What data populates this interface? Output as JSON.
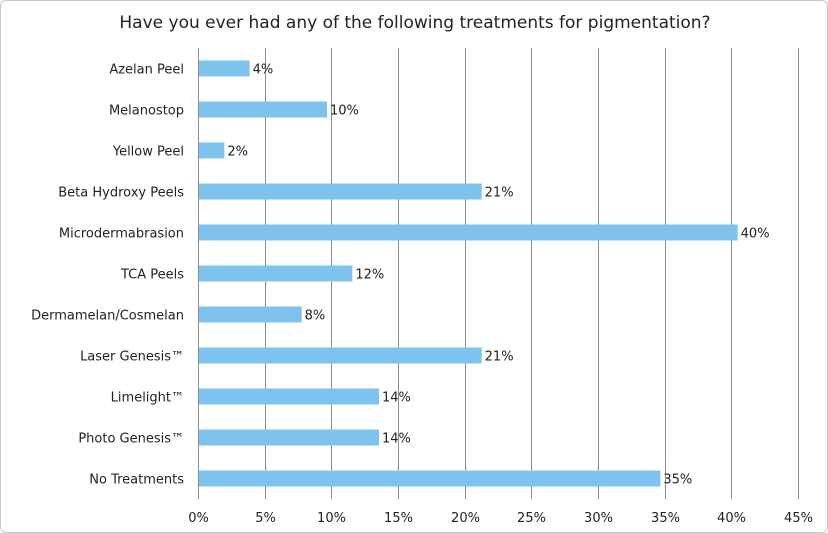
{
  "chart_data": {
    "type": "bar",
    "orientation": "horizontal",
    "title": "Have you ever had any of the following treatments for pigmentation?",
    "categories": [
      "Azelan Peel",
      "Melanostop",
      "Yellow Peel",
      "Beta Hydroxy Peels",
      "Microdermabrasion",
      "TCA Peels",
      "Dermamelan/Cosmelan",
      "Laser Genesis™",
      "Limelight™",
      "Photo Genesis™",
      "No Treatments"
    ],
    "values": [
      3.8,
      9.6,
      1.9,
      21.2,
      40.4,
      11.5,
      7.7,
      21.2,
      13.5,
      13.5,
      34.6
    ],
    "data_labels": [
      "4%",
      "10%",
      "2%",
      "21%",
      "40%",
      "12%",
      "8%",
      "21%",
      "14%",
      "14%",
      "35%"
    ],
    "xlim": [
      0,
      45
    ],
    "xticks": [
      0,
      5,
      10,
      15,
      20,
      25,
      30,
      35,
      40,
      45
    ],
    "xtick_labels": [
      "0%",
      "5%",
      "10%",
      "15%",
      "20%",
      "25%",
      "30%",
      "35%",
      "40%",
      "45%"
    ],
    "xlabel": "",
    "ylabel": "",
    "grid": "vertical",
    "bar_color": "#7dc3ee",
    "grid_color": "#8c8c8c"
  }
}
